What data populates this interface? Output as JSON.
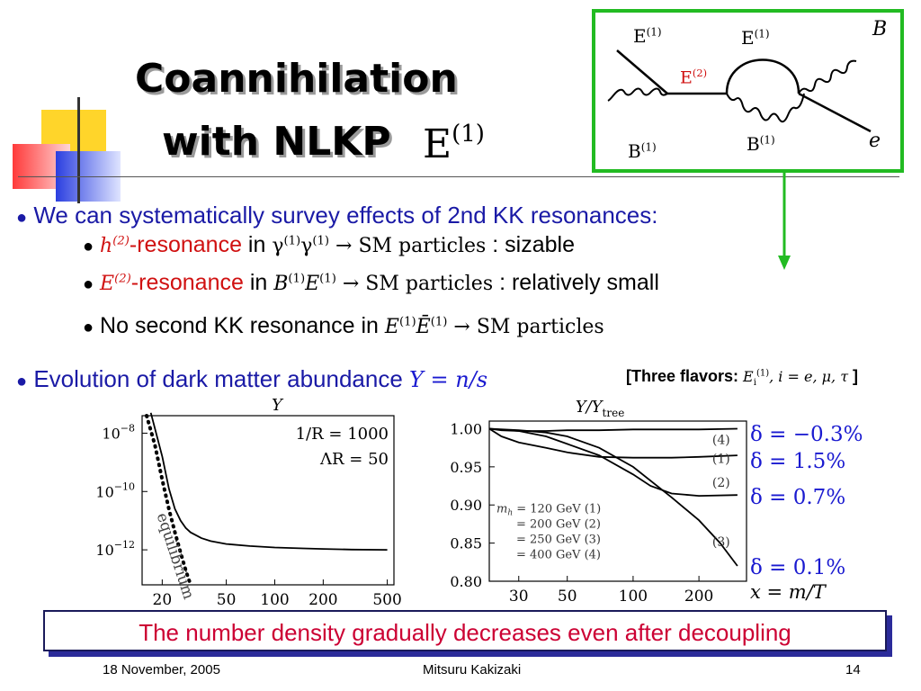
{
  "slide": {
    "title_line1": "Coannihilation",
    "title_line2": "with NLKP",
    "title_math": "E",
    "title_math_sup": "(1)",
    "bullets": {
      "b1": "We can systematically survey effects of 2nd KK resonances:",
      "sub1_math_h": "h",
      "sub1_math_h_sup": "(2)",
      "sub1_text": "-resonance",
      "sub1_in": " in ",
      "sub1_process_g1": "γ",
      "sub1_process_sup1": "(1)",
      "sub1_process_g2": "γ",
      "sub1_process_sup2": "(1)",
      "sub1_process_rest": " → SM particles",
      "sub1_note": ": sizable",
      "sub2_math_e": "E",
      "sub2_math_e_sup": "(2)",
      "sub2_text": "-resonance",
      "sub2_in": " in ",
      "sub2_process_b": "B",
      "sub2_process_sup1": "(1)",
      "sub2_process_e": "E",
      "sub2_process_sup2": "(1)",
      "sub2_process_rest": " → SM particles",
      "sub2_note": ": relatively small",
      "sub3_text": "No second KK resonance in",
      "sub3_process_e": "E",
      "sub3_process_sup1": "(1)",
      "sub3_process_ebar": "Ē",
      "sub3_process_sup2": "(1)",
      "sub3_process_rest": " → SM particles",
      "b2": "Evolution of dark matter abundance",
      "b2_math": "Y = n/s",
      "flavors_open": "[Three flavors: ",
      "flavors_e": "E",
      "flavors_sub": "i",
      "flavors_sup": "(1)",
      "flavors_rest": ",  i = e, μ, τ",
      "flavors_close": " ]"
    },
    "banner": "The number density gradually decreases even after decoupling",
    "footer": {
      "date": "18 November, 2005",
      "author": "Mitsuru Kakizaki",
      "page": "14"
    },
    "colors": {
      "blue_text": "#1a1aa6",
      "red_text": "#d01010",
      "diagram_border": "#22bb22",
      "arrow": "#22bb22",
      "banner_text": "#cc0033"
    }
  },
  "diagram": {
    "label_e1_left": "E",
    "label_e1_left_sup": "(1)",
    "label_e1_right": "E",
    "label_e1_right_sup": "(1)",
    "label_e2": "E",
    "label_e2_sup": "(2)",
    "label_b1_left": "B",
    "label_b1_left_sup": "(1)",
    "label_b1_bottom": "B",
    "label_b1_bottom_sup": "(1)",
    "label_b": "B",
    "label_e": "e"
  },
  "chart_data": [
    {
      "type": "line",
      "title": "Y",
      "x_scale": "log",
      "y_scale": "log",
      "xlim": [
        15,
        550
      ],
      "ylim_exp": [
        -13.2,
        -7.4
      ],
      "xticks": [
        20,
        50,
        100,
        200,
        500
      ],
      "xtick_labels": [
        "20",
        "50",
        "100",
        "200",
        "500"
      ],
      "yticks_exp": [
        -8,
        -10,
        -12
      ],
      "ytick_labels": [
        {
          "base": "10",
          "exp": "−8"
        },
        {
          "base": "10",
          "exp": "−10"
        },
        {
          "base": "10",
          "exp": "−12"
        }
      ],
      "annotations": [
        "1/R = 1000",
        "ΛR = 50"
      ],
      "curve_label": "equilibrium",
      "series": [
        {
          "style": "solid",
          "x": [
            17,
            20,
            22,
            24,
            26,
            28,
            30,
            35,
            40,
            50,
            70,
            100,
            150,
            200,
            300,
            500
          ],
          "log10_y": [
            -7.3,
            -8.8,
            -9.9,
            -10.6,
            -11.0,
            -11.25,
            -11.4,
            -11.6,
            -11.7,
            -11.8,
            -11.87,
            -11.92,
            -11.95,
            -11.97,
            -11.99,
            -12.0
          ]
        },
        {
          "style": "dotted",
          "x": [
            16,
            18,
            20,
            22,
            24,
            26,
            28,
            30
          ],
          "log10_y": [
            -7.4,
            -8.4,
            -9.6,
            -10.6,
            -11.4,
            -12.1,
            -12.7,
            -13.2
          ]
        }
      ]
    },
    {
      "type": "line",
      "title": "Y/Y",
      "title_sub": "tree",
      "x_scale": "log",
      "xlim": [
        22,
        330
      ],
      "ylim": [
        0.8,
        1.01
      ],
      "xticks": [
        30,
        50,
        100,
        200
      ],
      "xtick_labels": [
        "30",
        "50",
        "100",
        "200"
      ],
      "yticks": [
        1.0,
        0.95,
        0.9,
        0.85,
        0.8
      ],
      "ytick_labels": [
        "1.00",
        "0.95",
        "0.90",
        "0.85",
        "0.80"
      ],
      "xlabel": "x = m/T",
      "legend": [
        "m",
        "h",
        " = 120 GeV (1)",
        "= 200 GeV (2)",
        "= 250 GeV (3)",
        "= 400 GeV (4)"
      ],
      "series": [
        {
          "name": "(1)",
          "delta": "δ = 1.5%",
          "x": [
            22,
            25,
            30,
            40,
            50,
            70,
            100,
            150,
            200,
            300
          ],
          "y": [
            1.0,
            0.99,
            0.982,
            0.975,
            0.969,
            0.963,
            0.962,
            0.962,
            0.963,
            0.965
          ]
        },
        {
          "name": "(2)",
          "delta": "δ = 0.7%",
          "x": [
            22,
            30,
            40,
            50,
            70,
            100,
            120,
            150,
            200,
            300
          ],
          "y": [
            1.0,
            0.997,
            0.99,
            0.98,
            0.965,
            0.94,
            0.925,
            0.915,
            0.912,
            0.913
          ]
        },
        {
          "name": "(3)",
          "delta": "δ = 0.1%",
          "x": [
            22,
            30,
            40,
            50,
            70,
            100,
            150,
            200,
            250,
            300
          ],
          "y": [
            1.0,
            0.998,
            0.995,
            0.99,
            0.975,
            0.95,
            0.91,
            0.88,
            0.85,
            0.82
          ]
        },
        {
          "name": "(4)",
          "delta": "δ = −0.3%",
          "x": [
            22,
            25,
            30,
            40,
            50,
            70,
            100,
            150,
            200,
            300
          ],
          "y": [
            1.0,
            0.998,
            0.997,
            0.997,
            0.998,
            0.998,
            0.999,
            0.999,
            0.999,
            1.0
          ]
        }
      ]
    }
  ]
}
